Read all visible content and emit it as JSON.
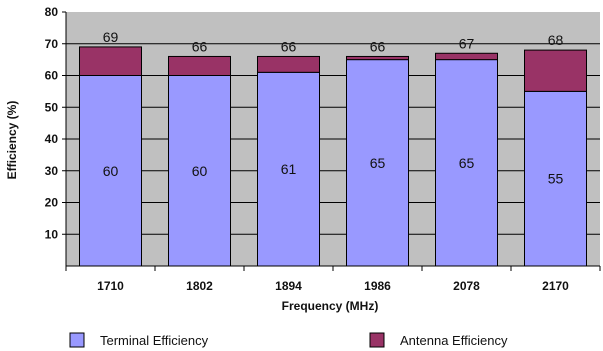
{
  "chart_data": {
    "type": "bar",
    "stacked": true,
    "categories": [
      "1710",
      "1802",
      "1894",
      "1986",
      "2078",
      "2170"
    ],
    "series": [
      {
        "name": "Terminal Efficiency",
        "values": [
          60,
          60,
          61,
          65,
          65,
          55
        ],
        "color": "#9999ff",
        "labels": [
          "60",
          "60",
          "61",
          "65",
          "65",
          "55"
        ]
      },
      {
        "name": "Antenna Efficiency",
        "values": [
          9,
          6,
          5,
          1,
          2,
          13
        ],
        "color": "#993366",
        "labels": []
      }
    ],
    "totals": [
      "69",
      "66",
      "66",
      "66",
      "67",
      "68"
    ],
    "yticks": [
      "10",
      "20",
      "30",
      "40",
      "50",
      "60",
      "70",
      "80"
    ],
    "ylim": [
      0,
      80
    ],
    "xlabel": "Frequency (MHz)",
    "ylabel": "Efficiency (%)",
    "plot_background": "#c0c0c0",
    "grid": true,
    "legend": {
      "position": "bottom",
      "items": [
        "Terminal Efficiency",
        "Antenna Efficiency"
      ]
    }
  }
}
